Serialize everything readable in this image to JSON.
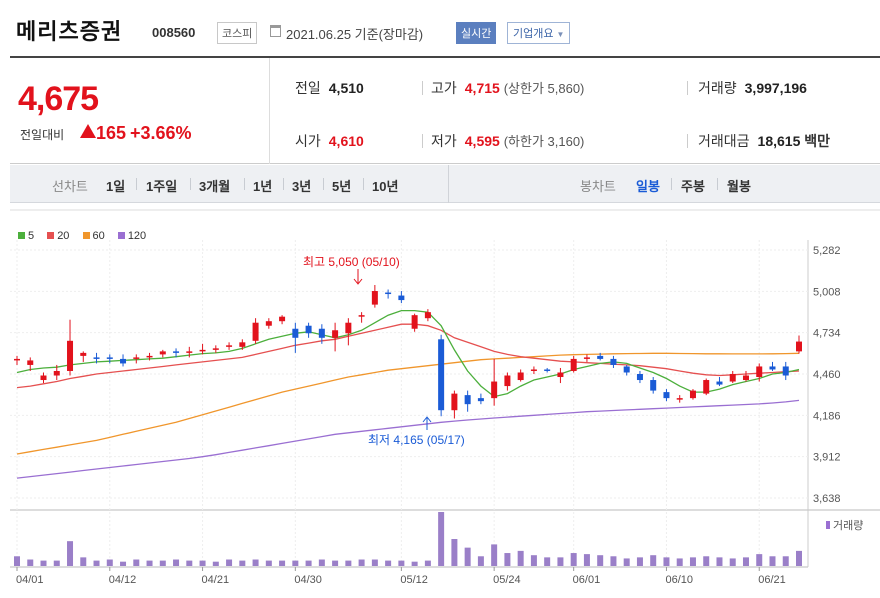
{
  "header": {
    "name": "메리츠증권",
    "code": "008560",
    "market": "코스피",
    "date": "2021.06.25 기준(장마감)",
    "realtime": "실시간",
    "company_info": "기업개요"
  },
  "quote": {
    "price": "4,675",
    "change_label": "전일대비",
    "change": "165",
    "change_pct": "+3.66%",
    "prev_close": {
      "label": "전일",
      "value": "4,510"
    },
    "high": {
      "label": "고가",
      "value": "4,715",
      "sub": "(상한가 5,860)"
    },
    "volume": {
      "label": "거래량",
      "value": "3,997,196"
    },
    "open": {
      "label": "시가",
      "value": "4,610"
    },
    "low": {
      "label": "저가",
      "value": "4,595",
      "sub": "(하한가 3,160)"
    },
    "turnover": {
      "label": "거래대금",
      "value": "18,615",
      "unit": "백만"
    }
  },
  "toolbar": {
    "line_label": "선차트",
    "line_periods": [
      "1일",
      "1주일",
      "3개월",
      "1년",
      "3년",
      "5년",
      "10년"
    ],
    "candle_label": "봉차트",
    "candle_periods": [
      "일봉",
      "주봉",
      "월봉"
    ],
    "candle_active": "일봉"
  },
  "chart_data": {
    "type": "candlestick",
    "legend": [
      {
        "name": "5",
        "color": "#4caf3c"
      },
      {
        "name": "20",
        "color": "#e55050"
      },
      {
        "name": "60",
        "color": "#f0962c"
      },
      {
        "name": "120",
        "color": "#9a6fd2"
      }
    ],
    "y_ticks": [
      "5,282",
      "5,008",
      "4,734",
      "4,460",
      "4,186",
      "3,912",
      "3,638"
    ],
    "ylim": [
      3638,
      5282
    ],
    "x_labels": [
      "04/01",
      "04/12",
      "04/21",
      "04/30",
      "05/12",
      "05/24",
      "06/01",
      "06/10",
      "06/21"
    ],
    "x_label_index": [
      0,
      7,
      14,
      21,
      29,
      36,
      42,
      49,
      56
    ],
    "annotation_high": "최고 5,050 (05/10)",
    "annotation_low": "최저 4,165 (05/17)",
    "volume_label": "거래량",
    "candles": [
      {
        "o": 4550,
        "h": 4580,
        "l": 4520,
        "c": 4560
      },
      {
        "o": 4520,
        "h": 4570,
        "l": 4480,
        "c": 4550
      },
      {
        "o": 4420,
        "h": 4470,
        "l": 4400,
        "c": 4450
      },
      {
        "o": 4450,
        "h": 4520,
        "l": 4420,
        "c": 4480
      },
      {
        "o": 4480,
        "h": 4820,
        "l": 4450,
        "c": 4680
      },
      {
        "o": 4580,
        "h": 4610,
        "l": 4540,
        "c": 4600
      },
      {
        "o": 4570,
        "h": 4600,
        "l": 4530,
        "c": 4560
      },
      {
        "o": 4570,
        "h": 4590,
        "l": 4530,
        "c": 4560
      },
      {
        "o": 4560,
        "h": 4590,
        "l": 4510,
        "c": 4530
      },
      {
        "o": 4560,
        "h": 4590,
        "l": 4530,
        "c": 4570
      },
      {
        "o": 4570,
        "h": 4600,
        "l": 4550,
        "c": 4580
      },
      {
        "o": 4590,
        "h": 4620,
        "l": 4570,
        "c": 4610
      },
      {
        "o": 4610,
        "h": 4630,
        "l": 4570,
        "c": 4600
      },
      {
        "o": 4600,
        "h": 4640,
        "l": 4570,
        "c": 4610
      },
      {
        "o": 4610,
        "h": 4660,
        "l": 4590,
        "c": 4620
      },
      {
        "o": 4620,
        "h": 4650,
        "l": 4600,
        "c": 4630
      },
      {
        "o": 4640,
        "h": 4670,
        "l": 4620,
        "c": 4650
      },
      {
        "o": 4640,
        "h": 4690,
        "l": 4620,
        "c": 4670
      },
      {
        "o": 4680,
        "h": 4830,
        "l": 4660,
        "c": 4800
      },
      {
        "o": 4780,
        "h": 4830,
        "l": 4760,
        "c": 4810
      },
      {
        "o": 4810,
        "h": 4850,
        "l": 4790,
        "c": 4840
      },
      {
        "o": 4760,
        "h": 4800,
        "l": 4600,
        "c": 4700
      },
      {
        "o": 4780,
        "h": 4800,
        "l": 4700,
        "c": 4730
      },
      {
        "o": 4760,
        "h": 4790,
        "l": 4660,
        "c": 4700
      },
      {
        "o": 4700,
        "h": 4800,
        "l": 4610,
        "c": 4750
      },
      {
        "o": 4730,
        "h": 4830,
        "l": 4650,
        "c": 4800
      },
      {
        "o": 4840,
        "h": 4870,
        "l": 4800,
        "c": 4850
      },
      {
        "o": 4920,
        "h": 5050,
        "l": 4900,
        "c": 5010
      },
      {
        "o": 5000,
        "h": 5020,
        "l": 4960,
        "c": 4990
      },
      {
        "o": 4980,
        "h": 5010,
        "l": 4930,
        "c": 4950
      },
      {
        "o": 4760,
        "h": 4860,
        "l": 4740,
        "c": 4850
      },
      {
        "o": 4830,
        "h": 4890,
        "l": 4810,
        "c": 4870
      },
      {
        "o": 4690,
        "h": 4720,
        "l": 4180,
        "c": 4220
      },
      {
        "o": 4220,
        "h": 4350,
        "l": 4165,
        "c": 4330
      },
      {
        "o": 4320,
        "h": 4350,
        "l": 4210,
        "c": 4260
      },
      {
        "o": 4300,
        "h": 4330,
        "l": 4260,
        "c": 4280
      },
      {
        "o": 4300,
        "h": 4560,
        "l": 4250,
        "c": 4410
      },
      {
        "o": 4380,
        "h": 4470,
        "l": 4350,
        "c": 4450
      },
      {
        "o": 4420,
        "h": 4490,
        "l": 4410,
        "c": 4470
      },
      {
        "o": 4480,
        "h": 4510,
        "l": 4460,
        "c": 4490
      },
      {
        "o": 4490,
        "h": 4500,
        "l": 4470,
        "c": 4480
      },
      {
        "o": 4440,
        "h": 4500,
        "l": 4400,
        "c": 4470
      },
      {
        "o": 4480,
        "h": 4580,
        "l": 4470,
        "c": 4560
      },
      {
        "o": 4560,
        "h": 4590,
        "l": 4540,
        "c": 4570
      },
      {
        "o": 4580,
        "h": 4600,
        "l": 4550,
        "c": 4560
      },
      {
        "o": 4560,
        "h": 4580,
        "l": 4500,
        "c": 4520
      },
      {
        "o": 4510,
        "h": 4520,
        "l": 4450,
        "c": 4470
      },
      {
        "o": 4460,
        "h": 4480,
        "l": 4400,
        "c": 4420
      },
      {
        "o": 4420,
        "h": 4440,
        "l": 4330,
        "c": 4350
      },
      {
        "o": 4340,
        "h": 4360,
        "l": 4280,
        "c": 4300
      },
      {
        "o": 4290,
        "h": 4320,
        "l": 4270,
        "c": 4300
      },
      {
        "o": 4300,
        "h": 4360,
        "l": 4290,
        "c": 4350
      },
      {
        "o": 4330,
        "h": 4430,
        "l": 4320,
        "c": 4420
      },
      {
        "o": 4410,
        "h": 4440,
        "l": 4380,
        "c": 4390
      },
      {
        "o": 4410,
        "h": 4480,
        "l": 4400,
        "c": 4460
      },
      {
        "o": 4420,
        "h": 4480,
        "l": 4410,
        "c": 4450
      },
      {
        "o": 4440,
        "h": 4530,
        "l": 4410,
        "c": 4510
      },
      {
        "o": 4510,
        "h": 4540,
        "l": 4480,
        "c": 4490
      },
      {
        "o": 4510,
        "h": 4540,
        "l": 4420,
        "c": 4450
      },
      {
        "o": 4610,
        "h": 4715,
        "l": 4595,
        "c": 4675
      }
    ],
    "volumes": [
      9,
      6,
      5,
      5,
      23,
      8,
      5,
      6,
      4,
      6,
      5,
      5,
      6,
      5,
      5,
      4,
      6,
      5,
      6,
      5,
      5,
      5,
      5,
      6,
      5,
      5,
      6,
      6,
      5,
      5,
      4,
      5,
      50,
      25,
      17,
      9,
      20,
      12,
      14,
      10,
      8,
      8,
      12,
      11,
      10,
      9,
      7,
      8,
      10,
      8,
      7,
      8,
      9,
      8,
      7,
      8,
      11,
      9,
      9,
      14
    ],
    "ma5": [
      4470,
      4490,
      4500,
      4505,
      4520,
      4530,
      4540,
      4545,
      4550,
      4555,
      4560,
      4565,
      4575,
      4585,
      4595,
      4600,
      4610,
      4630,
      4660,
      4690,
      4710,
      4730,
      4740,
      4720,
      4700,
      4720,
      4750,
      4800,
      4850,
      4880,
      4880,
      4870,
      4780,
      4620,
      4480,
      4380,
      4310,
      4330,
      4380,
      4420,
      4440,
      4460,
      4490,
      4510,
      4530,
      4540,
      4530,
      4500,
      4470,
      4430,
      4380,
      4340,
      4340,
      4360,
      4390,
      4410,
      4430,
      4460,
      4470,
      4490
    ],
    "ma20": [
      4370,
      4380,
      4395,
      4410,
      4430,
      4445,
      4460,
      4470,
      4480,
      4490,
      4500,
      4510,
      4520,
      4530,
      4540,
      4550,
      4560,
      4570,
      4590,
      4610,
      4630,
      4650,
      4665,
      4680,
      4690,
      4710,
      4730,
      4750,
      4770,
      4790,
      4790,
      4780,
      4750,
      4700,
      4670,
      4640,
      4610,
      4590,
      4575,
      4565,
      4555,
      4545,
      4540,
      4535,
      4530,
      4525,
      4520,
      4515,
      4505,
      4495,
      4480,
      4465,
      4455,
      4450,
      4455,
      4460,
      4465,
      4470,
      4475,
      4480
    ],
    "ma60": [
      3930,
      3945,
      3960,
      3975,
      3990,
      4005,
      4020,
      4040,
      4060,
      4080,
      4100,
      4120,
      4140,
      4165,
      4190,
      4215,
      4240,
      4265,
      4290,
      4315,
      4340,
      4360,
      4380,
      4400,
      4420,
      4440,
      4455,
      4470,
      4485,
      4495,
      4505,
      4515,
      4525,
      4535,
      4545,
      4555,
      4560,
      4565,
      4570,
      4575,
      4580,
      4585,
      4588,
      4590,
      4592,
      4594,
      4595,
      4596,
      4597,
      4597,
      4596,
      4595,
      4594,
      4594,
      4593,
      4593,
      4593,
      4594,
      4595,
      4597
    ],
    "ma120": [
      3770,
      3780,
      3790,
      3800,
      3810,
      3820,
      3830,
      3840,
      3850,
      3860,
      3870,
      3880,
      3890,
      3900,
      3912,
      3925,
      3940,
      3955,
      3970,
      3985,
      4000,
      4015,
      4030,
      4045,
      4060,
      4070,
      4080,
      4090,
      4100,
      4110,
      4120,
      4130,
      4140,
      4148,
      4155,
      4162,
      4168,
      4174,
      4180,
      4186,
      4192,
      4198,
      4204,
      4210,
      4214,
      4218,
      4222,
      4226,
      4230,
      4234,
      4238,
      4242,
      4246,
      4250,
      4254,
      4258,
      4262,
      4268,
      4275,
      4285
    ]
  }
}
